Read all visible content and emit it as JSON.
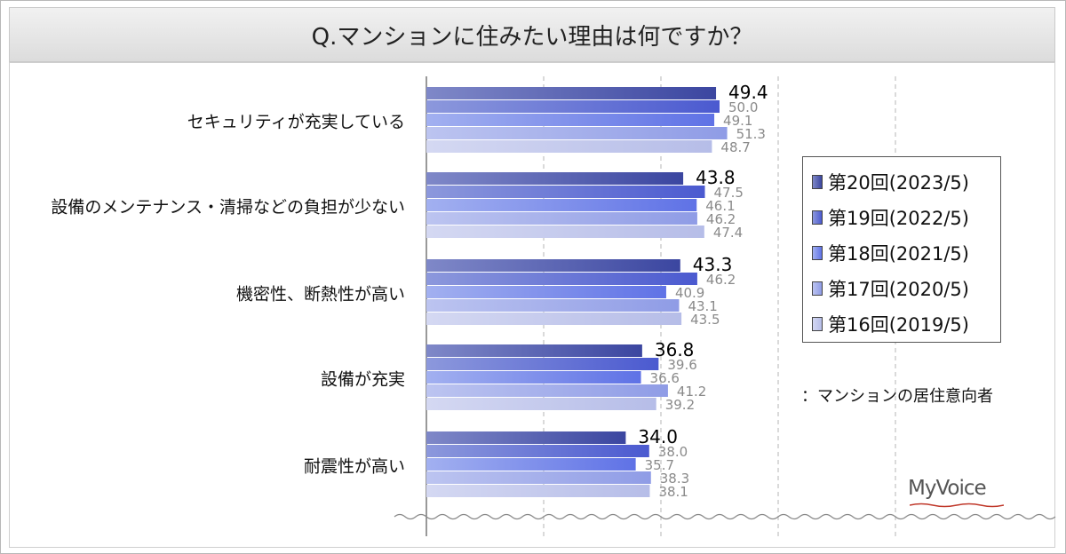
{
  "title": "Q.マンションに住みたい理由は何ですか？",
  "note": "：マンションの居住意向者",
  "logo": "MyVoice",
  "colors": {
    "series": [
      "#3b46a0",
      "#4b5ad0",
      "#5f72e6",
      "#8f9ce6",
      "#b6bde8"
    ],
    "highlight": [
      "#7f88c8",
      "#8c98dc",
      "#a2b0f0",
      "#bcc4f0",
      "#d4d8f2"
    ],
    "label_main": "#000000",
    "label_sub": "#8a8a8a",
    "logo_wave": "#c0392b"
  },
  "chart_data": {
    "type": "bar",
    "orientation": "horizontal",
    "categories": [
      "セキュリティが充実している",
      "設備のメンテナンス・清掃などの負担が少ない",
      "機密性、断熱性が高い",
      "設備が充実",
      "耐震性が高い"
    ],
    "series": [
      {
        "name": "第20回(2023/5)",
        "values": [
          49.4,
          43.8,
          43.3,
          36.8,
          34.0
        ]
      },
      {
        "name": "第19回(2022/5)",
        "values": [
          50.0,
          47.5,
          46.2,
          39.6,
          38.0
        ]
      },
      {
        "name": "第18回(2021/5)",
        "values": [
          49.1,
          46.1,
          40.9,
          36.6,
          35.7
        ]
      },
      {
        "name": "第17回(2020/5)",
        "values": [
          51.3,
          46.2,
          43.1,
          41.2,
          38.3
        ]
      },
      {
        "name": "第16回(2019/5)",
        "values": [
          48.7,
          47.4,
          43.5,
          39.2,
          38.1
        ]
      }
    ],
    "xlim": [
      0,
      100
    ],
    "grid": true,
    "legend": "right"
  }
}
